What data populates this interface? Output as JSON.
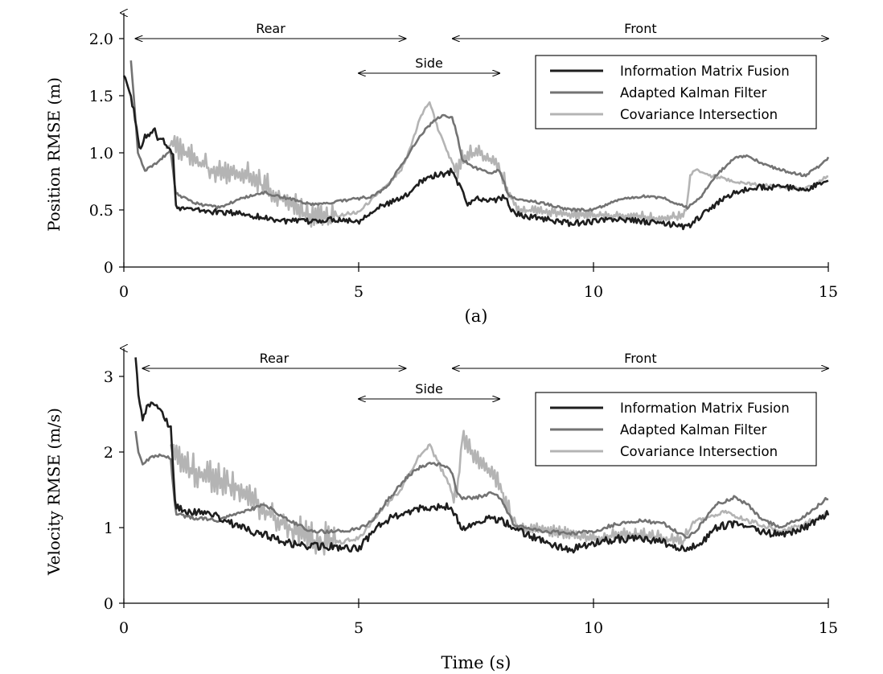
{
  "figure": {
    "xlabel": "Time (s)",
    "colors": {
      "imf": "#1e1e1e",
      "akf": "#737373",
      "ci": "#b4b4b4",
      "axis": "#000000"
    }
  },
  "chart_data": [
    {
      "type": "line",
      "caption": "(a)",
      "xlabel": "",
      "ylabel": "Position RMSE (m)",
      "xlim": [
        0,
        15
      ],
      "ylim": [
        0,
        2.0
      ],
      "xticks": [
        0,
        5,
        10,
        15
      ],
      "yticks": [
        0,
        0.5,
        1.0,
        1.5,
        2.0
      ],
      "ytick_labels": [
        "0",
        "0.5",
        "1.0",
        "1.5",
        "2.0"
      ],
      "grid": false,
      "legend_position": "top-right",
      "annotations": [
        {
          "text": "Rear",
          "x_start": 0.25,
          "x_end": 6.0
        },
        {
          "text": "Side",
          "x_start": 5.0,
          "x_end": 8.0
        },
        {
          "text": "Front",
          "x_start": 7.0,
          "x_end": 15.0
        }
      ],
      "series": [
        {
          "name": "Information Matrix Fusion",
          "x": [
            0,
            0.2,
            0.35,
            0.45,
            0.55,
            0.65,
            0.75,
            0.85,
            0.95,
            1.05,
            1.1,
            1.2,
            1.5,
            2.0,
            2.5,
            3.0,
            3.5,
            4.0,
            4.5,
            5.0,
            5.3,
            5.6,
            6.0,
            6.3,
            6.6,
            6.9,
            7.0,
            7.1,
            7.2,
            7.3,
            7.5,
            7.8,
            8.0,
            8.1,
            8.2,
            8.3,
            8.5,
            9.0,
            9.5,
            10.0,
            10.5,
            11.0,
            11.5,
            12.0,
            12.3,
            12.6,
            13.0,
            13.5,
            14.0,
            14.5,
            15.0
          ],
          "y": [
            1.7,
            1.4,
            1.0,
            1.15,
            1.15,
            1.2,
            1.1,
            1.1,
            1.05,
            1.0,
            0.55,
            0.52,
            0.5,
            0.48,
            0.47,
            0.43,
            0.4,
            0.4,
            0.42,
            0.4,
            0.5,
            0.55,
            0.62,
            0.75,
            0.8,
            0.82,
            0.85,
            0.75,
            0.68,
            0.55,
            0.6,
            0.58,
            0.6,
            0.62,
            0.55,
            0.47,
            0.45,
            0.42,
            0.38,
            0.4,
            0.42,
            0.4,
            0.38,
            0.35,
            0.45,
            0.55,
            0.65,
            0.7,
            0.7,
            0.68,
            0.75
          ]
        },
        {
          "name": "Adapted Kalman Filter",
          "x": [
            0.15,
            0.3,
            0.45,
            0.6,
            0.8,
            1.0,
            1.1,
            1.3,
            1.6,
            2.0,
            2.5,
            3.0,
            3.5,
            4.0,
            4.5,
            5.0,
            5.3,
            5.6,
            6.0,
            6.3,
            6.6,
            6.8,
            7.0,
            7.1,
            7.2,
            7.4,
            7.6,
            7.8,
            8.0,
            8.2,
            8.4,
            9.0,
            9.5,
            10.0,
            10.5,
            11.0,
            11.5,
            12.0,
            12.3,
            12.6,
            13.0,
            13.3,
            13.6,
            14.0,
            14.5,
            14.8,
            15.0
          ],
          "y": [
            1.82,
            1.0,
            0.85,
            0.88,
            0.95,
            1.02,
            0.65,
            0.6,
            0.55,
            0.52,
            0.6,
            0.65,
            0.6,
            0.55,
            0.57,
            0.6,
            0.62,
            0.7,
            0.95,
            1.15,
            1.28,
            1.33,
            1.3,
            1.15,
            0.95,
            0.88,
            0.85,
            0.82,
            0.85,
            0.62,
            0.6,
            0.55,
            0.5,
            0.5,
            0.58,
            0.62,
            0.6,
            0.52,
            0.62,
            0.8,
            0.95,
            0.98,
            0.9,
            0.85,
            0.8,
            0.88,
            0.96
          ]
        },
        {
          "name": "Covariance Intersection",
          "x": [
            0.9,
            1.0,
            1.2,
            1.5,
            2.0,
            2.5,
            3.0,
            3.5,
            4.0,
            4.5,
            5.0,
            5.3,
            5.6,
            5.9,
            6.1,
            6.3,
            6.5,
            6.7,
            6.9,
            7.0,
            7.1,
            7.2,
            7.5,
            7.8,
            8.0,
            8.2,
            8.4,
            9.0,
            9.5,
            10.0,
            10.5,
            11.0,
            11.5,
            11.9,
            12.0,
            12.05,
            12.2,
            12.5,
            13.0,
            13.5,
            14.0,
            14.5,
            15.0
          ],
          "y": [
            1.05,
            1.08,
            1.0,
            0.95,
            0.8,
            0.82,
            0.7,
            0.55,
            0.42,
            0.45,
            0.48,
            0.6,
            0.72,
            0.85,
            1.05,
            1.3,
            1.45,
            1.2,
            1.0,
            0.9,
            0.8,
            0.95,
            1.0,
            0.95,
            0.85,
            0.65,
            0.5,
            0.48,
            0.45,
            0.45,
            0.45,
            0.44,
            0.42,
            0.45,
            0.55,
            0.8,
            0.85,
            0.8,
            0.75,
            0.72,
            0.7,
            0.68,
            0.8
          ]
        }
      ]
    },
    {
      "type": "line",
      "caption": "",
      "xlabel": "Time (s)",
      "ylabel": "Velocity RMSE (m/s)",
      "xlim": [
        0,
        15
      ],
      "ylim": [
        0,
        3.0
      ],
      "xticks": [
        0,
        5,
        10,
        15
      ],
      "yticks": [
        0,
        1,
        2,
        3
      ],
      "ytick_labels": [
        "0",
        "1",
        "2",
        "3"
      ],
      "grid": false,
      "legend_position": "top-right",
      "annotations": [
        {
          "text": "Rear",
          "x_start": 0.4,
          "x_end": 6.0
        },
        {
          "text": "Side",
          "x_start": 5.0,
          "x_end": 8.0
        },
        {
          "text": "Front",
          "x_start": 7.0,
          "x_end": 15.0
        }
      ],
      "series": [
        {
          "name": "Information Matrix Fusion",
          "x": [
            0.25,
            0.3,
            0.4,
            0.5,
            0.6,
            0.7,
            0.8,
            0.9,
            1.0,
            1.1,
            1.3,
            1.6,
            2.0,
            2.5,
            3.0,
            3.5,
            4.0,
            4.5,
            4.8,
            5.0,
            5.3,
            5.6,
            6.0,
            6.3,
            6.6,
            6.9,
            7.0,
            7.1,
            7.2,
            7.4,
            7.6,
            7.8,
            8.0,
            8.3,
            8.6,
            9.0,
            9.5,
            10.0,
            10.5,
            11.0,
            11.5,
            12.0,
            12.3,
            12.6,
            13.0,
            13.5,
            14.0,
            14.5,
            15.0
          ],
          "y": [
            3.3,
            2.8,
            2.4,
            2.6,
            2.7,
            2.6,
            2.5,
            2.4,
            2.3,
            1.3,
            1.2,
            1.2,
            1.15,
            1.0,
            0.9,
            0.8,
            0.75,
            0.75,
            0.72,
            0.72,
            0.95,
            1.1,
            1.2,
            1.25,
            1.28,
            1.28,
            1.25,
            1.1,
            1.0,
            1.05,
            1.1,
            1.12,
            1.1,
            1.0,
            0.9,
            0.8,
            0.7,
            0.8,
            0.85,
            0.85,
            0.8,
            0.7,
            0.8,
            1.0,
            1.05,
            0.95,
            0.9,
            1.0,
            1.18
          ]
        },
        {
          "name": "Adapted Kalman Filter",
          "x": [
            0.25,
            0.3,
            0.4,
            0.5,
            0.7,
            0.9,
            1.0,
            1.1,
            1.3,
            1.6,
            2.0,
            2.5,
            3.0,
            3.5,
            4.0,
            4.5,
            5.0,
            5.3,
            5.6,
            6.0,
            6.3,
            6.6,
            6.9,
            7.0,
            7.1,
            7.2,
            7.5,
            7.8,
            8.0,
            8.3,
            8.6,
            9.0,
            9.5,
            10.0,
            10.5,
            11.0,
            11.5,
            12.0,
            12.3,
            12.6,
            13.0,
            13.3,
            13.6,
            14.0,
            14.5,
            15.0
          ],
          "y": [
            2.3,
            2.0,
            1.85,
            1.9,
            1.95,
            1.95,
            1.9,
            1.2,
            1.15,
            1.12,
            1.1,
            1.2,
            1.3,
            1.1,
            0.95,
            0.95,
            0.98,
            1.1,
            1.35,
            1.65,
            1.8,
            1.85,
            1.8,
            1.7,
            1.45,
            1.4,
            1.4,
            1.45,
            1.4,
            1.05,
            0.98,
            0.95,
            0.92,
            0.95,
            1.05,
            1.1,
            1.05,
            0.85,
            1.05,
            1.3,
            1.4,
            1.3,
            1.1,
            1.0,
            1.15,
            1.4
          ]
        },
        {
          "name": "Covariance Intersection",
          "x": [
            1.0,
            1.05,
            1.2,
            1.5,
            2.0,
            2.5,
            3.0,
            3.5,
            4.0,
            4.5,
            5.0,
            5.3,
            5.6,
            5.9,
            6.1,
            6.3,
            6.5,
            6.7,
            6.9,
            7.0,
            7.1,
            7.2,
            7.3,
            7.5,
            7.8,
            8.0,
            8.2,
            8.4,
            9.0,
            9.5,
            10.0,
            10.5,
            11.0,
            11.5,
            11.9,
            12.1,
            12.4,
            12.8,
            13.0,
            13.5,
            14.0,
            14.5,
            15.0
          ],
          "y": [
            2.1,
            2.1,
            1.9,
            1.7,
            1.6,
            1.5,
            1.2,
            1.0,
            0.8,
            0.8,
            0.85,
            1.1,
            1.3,
            1.5,
            1.75,
            1.95,
            2.1,
            1.85,
            1.6,
            1.45,
            1.4,
            2.2,
            2.1,
            1.9,
            1.7,
            1.55,
            1.2,
            1.0,
            0.95,
            0.9,
            0.85,
            0.9,
            0.9,
            0.85,
            0.8,
            1.05,
            1.15,
            1.2,
            1.15,
            1.05,
            0.95,
            1.05,
            1.2
          ]
        }
      ]
    }
  ]
}
